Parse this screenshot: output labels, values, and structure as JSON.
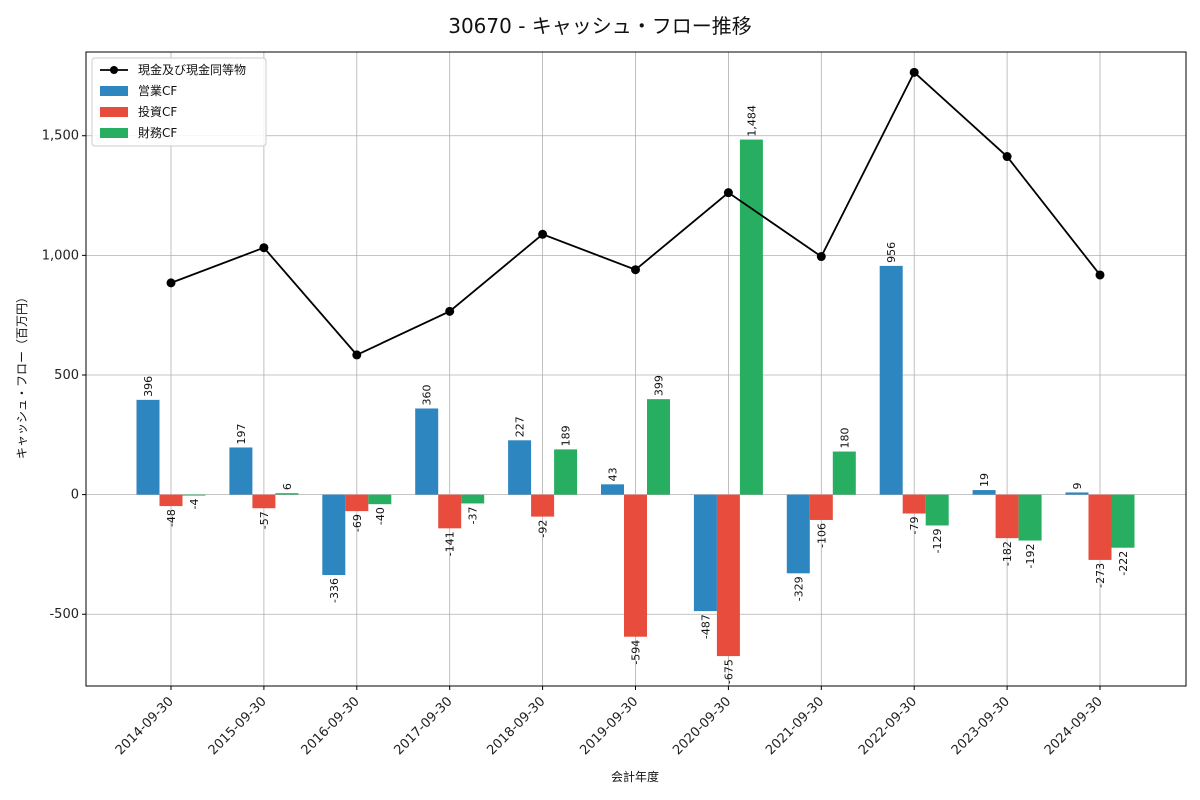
{
  "chart_data": {
    "type": "bar",
    "title": "30670 - キャッシュ・フロー推移",
    "xlabel": "会計年度",
    "ylabel": "キャッシュ・フロー（百万円）",
    "categories": [
      "2014-09-30",
      "2015-09-30",
      "2016-09-30",
      "2017-09-30",
      "2018-09-30",
      "2019-09-30",
      "2020-09-30",
      "2021-09-30",
      "2022-09-30",
      "2023-09-30",
      "2024-09-30"
    ],
    "ylim": [
      -800,
      1850
    ],
    "yticks": [
      -500,
      0,
      500,
      1000,
      1500
    ],
    "ytick_labels": [
      "-500",
      "0",
      "500",
      "1,000",
      "1,500"
    ],
    "grid": true,
    "legend_position": "top-left",
    "series": [
      {
        "name": "営業CF",
        "kind": "bar",
        "color": "#2e86c1",
        "values": [
          396,
          197,
          -336,
          360,
          227,
          43,
          -487,
          -329,
          956,
          19,
          9
        ],
        "labels": [
          "396",
          "197",
          "-336",
          "360",
          "227",
          "43",
          "-487",
          "-329",
          "956",
          "19",
          "9"
        ]
      },
      {
        "name": "投資CF",
        "kind": "bar",
        "color": "#e74c3c",
        "values": [
          -48,
          -57,
          -69,
          -141,
          -92,
          -594,
          -675,
          -106,
          -79,
          -182,
          -273
        ],
        "labels": [
          "-48",
          "-57",
          "-69",
          "-141",
          "-92",
          "-594",
          "-675",
          "-106",
          "-79",
          "-182",
          "-273"
        ]
      },
      {
        "name": "財務CF",
        "kind": "bar",
        "color": "#27ae60",
        "values": [
          -4,
          6,
          -40,
          -37,
          189,
          399,
          1484,
          180,
          -129,
          -192,
          -222
        ],
        "labels": [
          "-4",
          "6",
          "-40",
          "-37",
          "189",
          "399",
          "1,484",
          "180",
          "-129",
          "-192",
          "-222"
        ]
      },
      {
        "name": "現金及び現金同等物",
        "kind": "line",
        "color": "#000000",
        "values": [
          885,
          1032,
          584,
          766,
          1088,
          940,
          1262,
          995,
          1765,
          1413,
          918
        ]
      }
    ],
    "legend_order": [
      "現金及び現金同等物",
      "営業CF",
      "投資CF",
      "財務CF"
    ]
  }
}
